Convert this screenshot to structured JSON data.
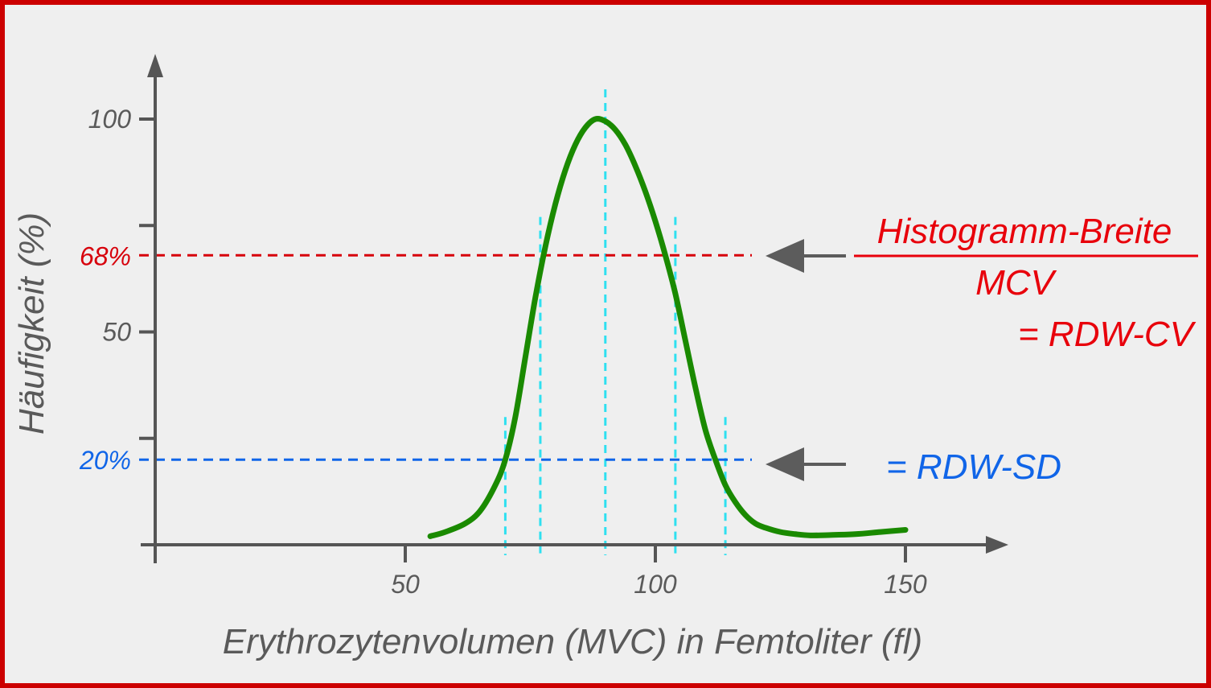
{
  "chart_data": {
    "type": "line",
    "xlabel": "Erythrozytenvolumen (MVC) in Femtoliter (fl)",
    "ylabel": "Häufigkeit (%)",
    "x_ticks": [
      "50",
      "100",
      "150"
    ],
    "y_ticks": [
      "50",
      "100"
    ],
    "xlim": [
      0,
      170
    ],
    "ylim": [
      0,
      115
    ],
    "series": [
      {
        "color": "#1a8a00",
        "x": [
          55,
          58,
          62,
          65,
          68,
          70,
          72,
          74,
          76,
          78,
          80,
          82,
          84,
          86,
          88,
          90,
          92,
          94,
          96,
          98,
          100,
          102,
          104,
          106,
          108,
          110,
          112,
          114,
          116,
          118,
          120,
          122,
          125,
          128,
          131,
          135,
          140,
          145,
          150
        ],
        "y": [
          2,
          3,
          5,
          8,
          14,
          20,
          30,
          44,
          58,
          70,
          80,
          88,
          94,
          98,
          100,
          99.5,
          97.5,
          94,
          89,
          83,
          76,
          68,
          59,
          48,
          37,
          27,
          20,
          14,
          10,
          7,
          5,
          4,
          3,
          2.5,
          2.2,
          2.3,
          2.5,
          3,
          3.5
        ]
      }
    ],
    "reference_lines": [
      {
        "label": "68%",
        "y": 68,
        "color": "#d7000b"
      },
      {
        "label": "20%",
        "y": 20,
        "color": "#1065e8"
      }
    ],
    "guide_lines_x": [
      70,
      77,
      90,
      104,
      114
    ],
    "annotations": {
      "numerator": "Histogramm-Breite",
      "denominator": "MCV",
      "rdw_cv": "= RDW-CV",
      "rdw_sd": "= RDW-SD"
    },
    "colors": {
      "curve": "#1a8a00",
      "guide": "#2ee0f0",
      "axis": "#555555",
      "ref_red": "#d7000b",
      "ref_blue": "#1065e8",
      "arrow": "#5c5c5c"
    }
  }
}
